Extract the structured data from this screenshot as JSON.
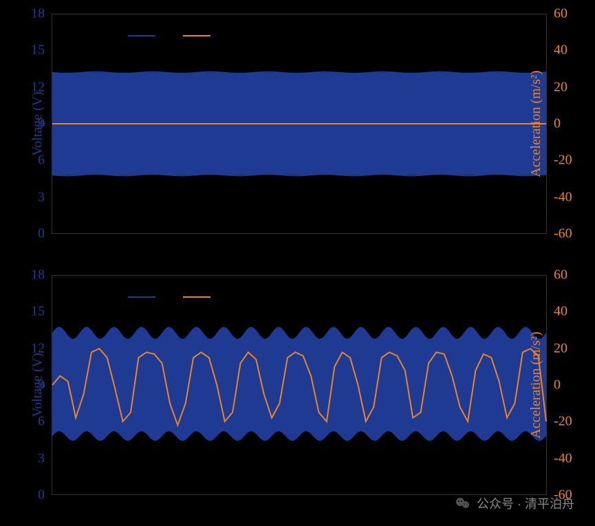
{
  "colors": {
    "background": "#000000",
    "voltage": "#1f3a93",
    "acceleration": "#e8852c",
    "text_voltage": "#1f3a93",
    "text_accel": "#e8852c"
  },
  "chart1": {
    "type": "dual-axis-line",
    "left_axis": {
      "label": "Voltage (V)",
      "ticks": [
        0,
        3,
        6,
        9,
        12,
        15,
        18
      ],
      "min": 0,
      "max": 18,
      "color": "#1f3a93"
    },
    "right_axis": {
      "label": "Acceleration (m/s²)",
      "ticks": [
        -60,
        -40,
        -20,
        0,
        20,
        40,
        60
      ],
      "min": -60,
      "max": 60,
      "color": "#e8852c"
    },
    "voltage_band": {
      "low": 4.8,
      "high": 13.2
    },
    "acceleration_line": 0,
    "legend": [
      {
        "label": "",
        "color": "#1f3a93"
      },
      {
        "label": "",
        "color": "#e8852c"
      }
    ]
  },
  "chart2": {
    "type": "dual-axis-line",
    "left_axis": {
      "label": "Voltage (V)",
      "ticks": [
        0,
        3,
        6,
        9,
        12,
        15,
        18
      ],
      "min": 0,
      "max": 18,
      "color": "#1f3a93"
    },
    "right_axis": {
      "label": "Acceleration (m/s²)",
      "ticks": [
        -60,
        -40,
        -20,
        0,
        20,
        40,
        60
      ],
      "min": -60,
      "max": 60,
      "color": "#e8852c"
    },
    "voltage_band": {
      "low": 4.8,
      "high": 13.3,
      "wavy": true,
      "wave_amp": 0.5,
      "wave_count": 18
    },
    "acceleration_series": {
      "values": [
        0,
        5,
        2,
        -18,
        -5,
        18,
        20,
        15,
        -2,
        -20,
        -15,
        15,
        18,
        17,
        12,
        -10,
        -22,
        -10,
        15,
        18,
        15,
        0,
        -20,
        -15,
        12,
        18,
        14,
        -5,
        -18,
        -10,
        15,
        18,
        16,
        5,
        -15,
        -20,
        10,
        18,
        15,
        0,
        -20,
        -12,
        15,
        18,
        16,
        8,
        -18,
        -15,
        12,
        18,
        17,
        5,
        -12,
        -20,
        8,
        17,
        15,
        2,
        -18,
        -10,
        18,
        20,
        16,
        -20
      ],
      "color": "#e8852c",
      "line_width": 2
    },
    "legend": [
      {
        "label": "",
        "color": "#1f3a93"
      },
      {
        "label": "",
        "color": "#e8852c"
      }
    ]
  },
  "watermark": {
    "text": "公众号 · 清平泊舟"
  }
}
